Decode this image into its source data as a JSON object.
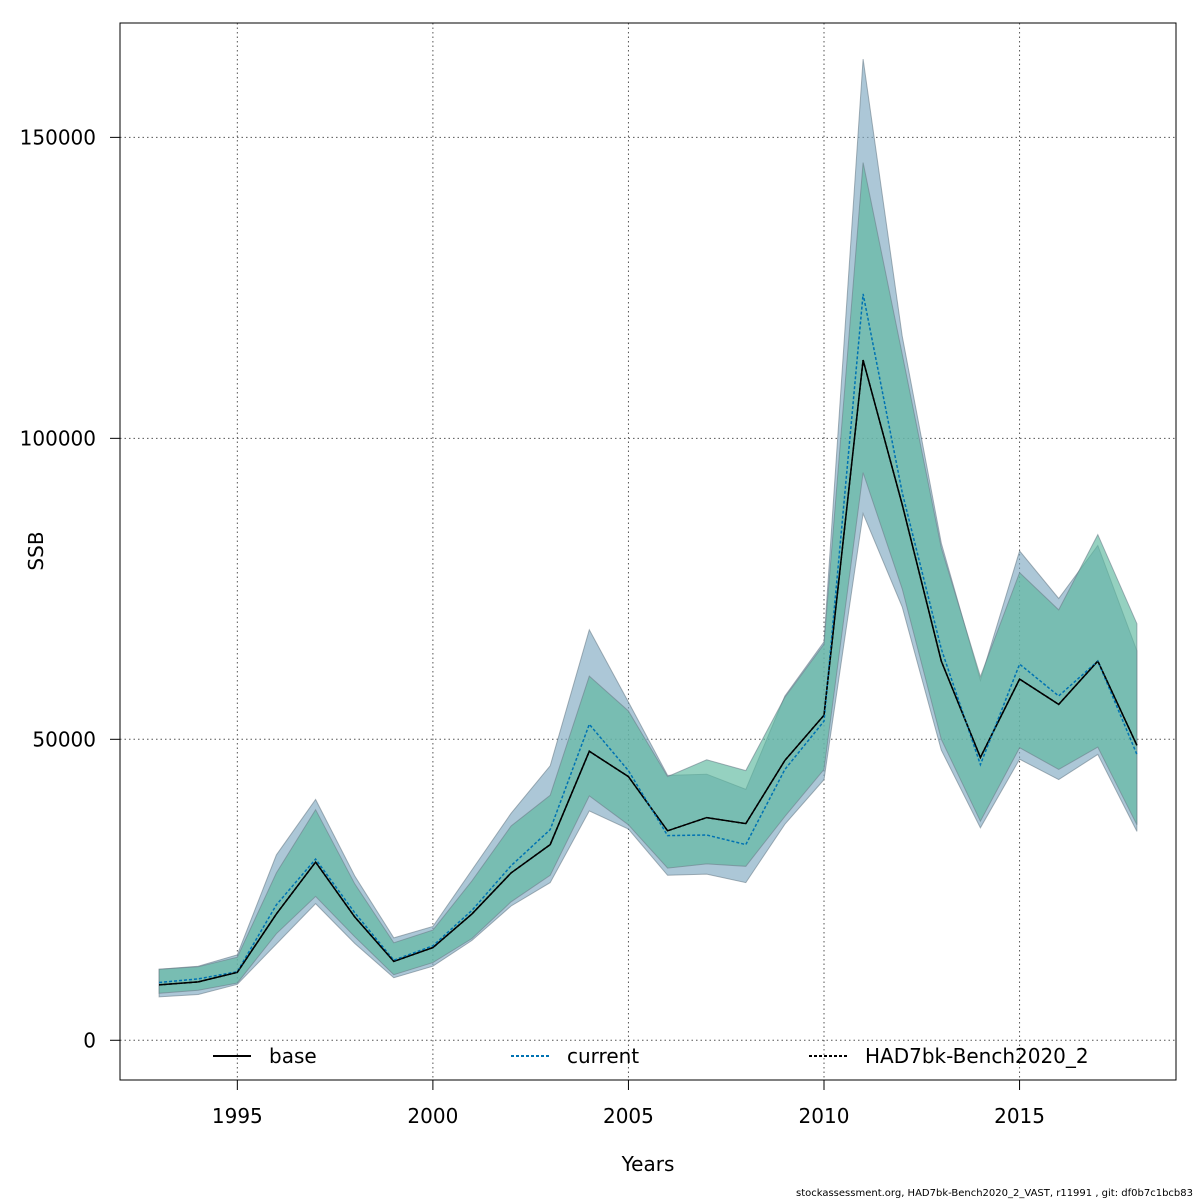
{
  "chart_data": {
    "type": "line",
    "xlabel": "Years",
    "ylabel": "SSB",
    "xlim": [
      1992,
      2019
    ],
    "ylim": [
      -6600,
      169000
    ],
    "x_ticks": [
      1995,
      2000,
      2005,
      2010,
      2015
    ],
    "x_tick_labels": [
      "1995",
      "2000",
      "2005",
      "2010",
      "2015"
    ],
    "y_ticks": [
      0,
      50000,
      100000,
      150000
    ],
    "y_tick_labels": [
      "0",
      "50000",
      "100000",
      "150000"
    ],
    "grid": true,
    "legend_position": "bottom",
    "x": [
      1993,
      1994,
      1995,
      1996,
      1997,
      1998,
      1999,
      2000,
      2001,
      2002,
      2003,
      2004,
      2005,
      2006,
      2007,
      2008,
      2009,
      2010,
      2011,
      2012,
      2013,
      2014,
      2015,
      2016,
      2017,
      2018
    ],
    "series": [
      {
        "name": "base",
        "line_style": "solid",
        "color": "#000000",
        "values": [
          9200,
          9700,
          11300,
          21000,
          29600,
          20500,
          13100,
          15400,
          21000,
          27800,
          32500,
          48000,
          43800,
          34800,
          37000,
          36000,
          46500,
          54000,
          113000,
          89000,
          63000,
          47000,
          60000,
          55800,
          63000,
          49000
        ],
        "lower": [
          7200,
          7600,
          9300,
          16000,
          22700,
          16100,
          10400,
          12300,
          16600,
          22300,
          26200,
          38100,
          35100,
          27400,
          27600,
          26200,
          35900,
          43300,
          87500,
          72000,
          48200,
          35300,
          46700,
          43300,
          47500,
          34700
        ],
        "upper": [
          11800,
          12300,
          14200,
          30800,
          40000,
          27300,
          17000,
          18900,
          28300,
          37700,
          45600,
          68200,
          56200,
          44000,
          44200,
          41700,
          57200,
          66200,
          163000,
          117000,
          82600,
          59800,
          81300,
          73400,
          82200,
          64700
        ],
        "band_color": "#7fa9c2"
      },
      {
        "name": "current",
        "line_style": "dotted",
        "color": "#0072b2",
        "values": [
          9600,
          10200,
          11400,
          22500,
          30100,
          21200,
          13300,
          15700,
          21600,
          29000,
          35000,
          52500,
          44800,
          34000,
          34100,
          32500,
          45000,
          53000,
          124000,
          91000,
          65000,
          45800,
          62500,
          57200,
          63000,
          47500
        ],
        "lower": [
          7800,
          8300,
          9500,
          17700,
          23900,
          17200,
          10900,
          12900,
          16900,
          23000,
          27400,
          40600,
          35800,
          28600,
          29300,
          28900,
          37200,
          45000,
          94300,
          75000,
          50000,
          36400,
          48600,
          45000,
          48700,
          35800
        ],
        "upper": [
          11800,
          12200,
          13800,
          27800,
          38300,
          26000,
          16200,
          18300,
          26500,
          35600,
          40700,
          60500,
          54700,
          43800,
          46600,
          44800,
          57000,
          65800,
          145800,
          114000,
          81800,
          60400,
          77700,
          71500,
          84000,
          69200
        ],
        "band_color": "#5cb89e"
      },
      {
        "name": "HAD7bk-Bench2020_2",
        "line_style": "dotted",
        "color": "#000000",
        "values": [
          9200,
          9700,
          11300,
          21000,
          29600,
          20500,
          13100,
          15400,
          21000,
          27800,
          32500,
          48000,
          43800,
          34800,
          37000,
          36000,
          46500,
          54000,
          113000,
          89000,
          63000,
          47000,
          60000,
          55800,
          63000,
          49000
        ]
      }
    ],
    "legend": [
      {
        "label": "base",
        "line_style": "solid",
        "color": "#000000"
      },
      {
        "label": "current",
        "line_style": "dotted",
        "color": "#0072b2"
      },
      {
        "label": "HAD7bk-Bench2020_2",
        "line_style": "dotted",
        "color": "#000000"
      }
    ],
    "footer": "stockassessment.org, HAD7bk-Bench2020_2_VAST, r11991 , git: df0b7c1bcb83"
  }
}
